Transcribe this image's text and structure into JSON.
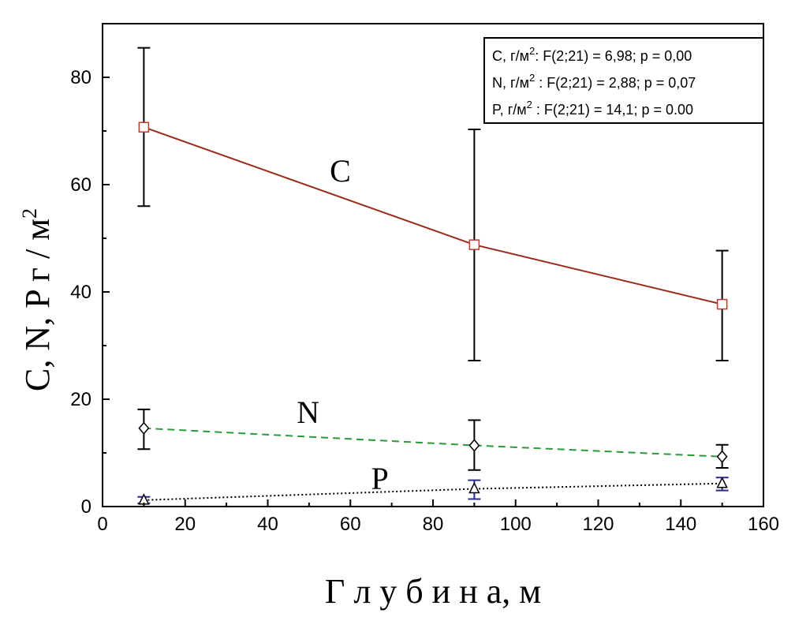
{
  "chart_data": {
    "type": "line",
    "xlabel": "Г л у б и н а, м",
    "ylabel": "C, N, P г / м",
    "ylabel_sup": "2",
    "xlim": [
      0,
      160
    ],
    "ylim": [
      0,
      90
    ],
    "xticks": [
      0,
      20,
      40,
      60,
      80,
      100,
      120,
      140,
      160
    ],
    "yticks": [
      0,
      20,
      40,
      60,
      80
    ],
    "grid": false,
    "series": [
      {
        "name": "C",
        "color": "#9b2a1a",
        "line_style": "solid",
        "marker": "square",
        "x": [
          10,
          90,
          150
        ],
        "y": [
          70.7,
          48.8,
          37.7
        ],
        "err_low": [
          56.0,
          27.2,
          27.2
        ],
        "err_high": [
          85.5,
          70.3,
          47.7
        ],
        "err_color": "#000000"
      },
      {
        "name": "N",
        "color": "#2a9a3a",
        "line_style": "dashed",
        "marker": "diamond",
        "x": [
          10,
          90,
          150
        ],
        "y": [
          14.6,
          11.4,
          9.3
        ],
        "err_low": [
          10.7,
          6.8,
          7.2
        ],
        "err_high": [
          18.1,
          16.1,
          11.5
        ],
        "err_color": "#000000"
      },
      {
        "name": "P",
        "color": "#000000",
        "line_style": "dotted",
        "marker": "triangle",
        "x": [
          10,
          90,
          150
        ],
        "y": [
          1.2,
          3.3,
          4.3
        ],
        "err_low": [
          0.6,
          1.4,
          3.0
        ],
        "err_high": [
          1.8,
          4.9,
          5.4
        ],
        "err_color": "#2b2b8c"
      }
    ],
    "annotations": [
      {
        "text": "C",
        "x": 55,
        "y": 60.6
      },
      {
        "text": "N",
        "x": 47,
        "y": 15.6
      },
      {
        "text": "P",
        "x": 65,
        "y": 3.2
      }
    ],
    "legend": {
      "placement": "top-right",
      "entries": [
        {
          "prefix": "C, г/м",
          "sup": "2",
          "text": ": F(2;21) = 6,98; p = 0,00"
        },
        {
          "prefix": "N, г/м",
          "sup": "2",
          "text": " : F(2;21) = 2,88; p = 0,07"
        },
        {
          "prefix": "P, г/м",
          "sup": "2",
          "text": " : F(2;21) = 14,1; p = 0.00"
        }
      ]
    }
  }
}
